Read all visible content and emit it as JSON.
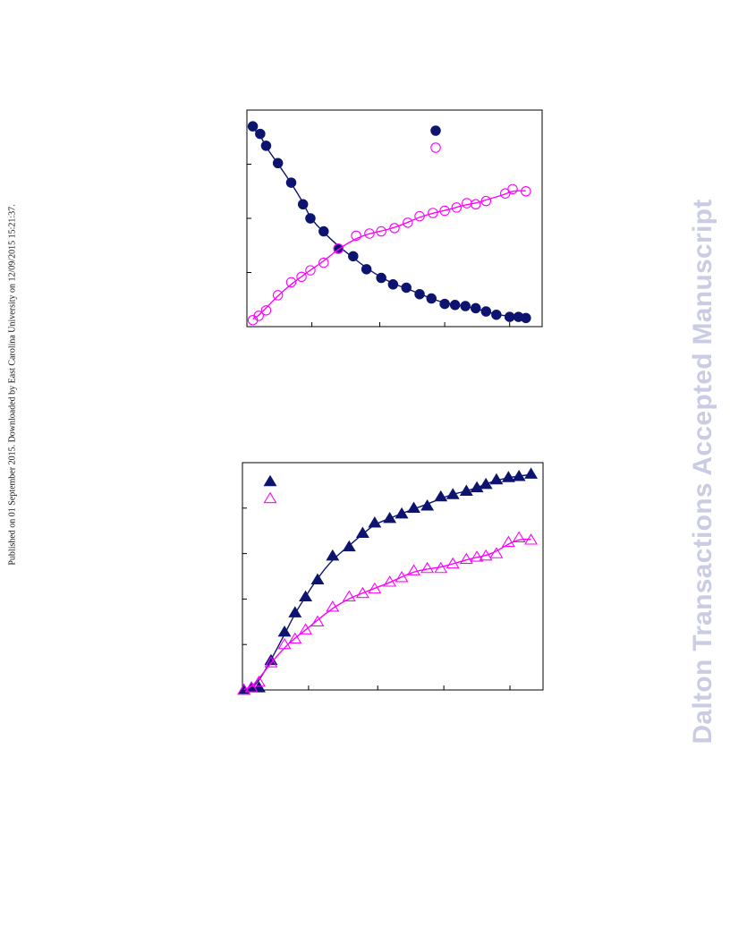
{
  "side_note": "Published on 01 September 2015. Downloaded by East Carolina University on 12/09/2015 15:21:37.",
  "watermark": "Dalton Transactions Accepted Manuscript",
  "colors": {
    "navy": "#0d1470",
    "magenta": "#ff00ff",
    "frame": "#000000"
  },
  "chart_data": [
    {
      "type": "scatter",
      "title": "",
      "xlabel": "",
      "ylabel": "",
      "xlim": [
        0,
        1
      ],
      "ylim": [
        0,
        1
      ],
      "grid": false,
      "legend_position": "top-right",
      "legend_labels_visible": false,
      "series": [
        {
          "marker": "filled-circle",
          "color": "#0d1470",
          "fit_curve": true,
          "x": [
            0.02,
            0.045,
            0.065,
            0.105,
            0.15,
            0.19,
            0.215,
            0.26,
            0.31,
            0.36,
            0.405,
            0.455,
            0.495,
            0.54,
            0.585,
            0.625,
            0.67,
            0.705,
            0.74,
            0.775,
            0.81,
            0.845,
            0.89,
            0.92,
            0.945
          ],
          "y": [
            0.925,
            0.89,
            0.835,
            0.755,
            0.665,
            0.565,
            0.5,
            0.44,
            0.36,
            0.325,
            0.265,
            0.225,
            0.195,
            0.18,
            0.15,
            0.13,
            0.105,
            0.1,
            0.095,
            0.085,
            0.07,
            0.055,
            0.045,
            0.045,
            0.04
          ]
        },
        {
          "marker": "open-circle",
          "color": "#ff00ff",
          "fit_curve": true,
          "x": [
            0.02,
            0.04,
            0.065,
            0.105,
            0.15,
            0.185,
            0.215,
            0.26,
            0.31,
            0.37,
            0.415,
            0.455,
            0.5,
            0.545,
            0.585,
            0.63,
            0.67,
            0.71,
            0.745,
            0.775,
            0.81,
            0.875,
            0.9,
            0.945
          ],
          "y": [
            0.03,
            0.05,
            0.075,
            0.145,
            0.205,
            0.23,
            0.26,
            0.295,
            0.36,
            0.42,
            0.43,
            0.44,
            0.455,
            0.48,
            0.51,
            0.525,
            0.535,
            0.55,
            0.57,
            0.565,
            0.58,
            0.615,
            0.635,
            0.625
          ]
        }
      ]
    },
    {
      "type": "scatter",
      "title": "",
      "xlabel": "",
      "ylabel": "",
      "xlim": [
        0,
        1
      ],
      "ylim": [
        0,
        1
      ],
      "grid": false,
      "legend_position": "top-left",
      "legend_labels_visible": false,
      "series": [
        {
          "marker": "filled-triangle",
          "color": "#0d1470",
          "fit_curve": true,
          "x": [
            0.005,
            0.03,
            0.055,
            0.095,
            0.14,
            0.175,
            0.21,
            0.25,
            0.3,
            0.355,
            0.4,
            0.44,
            0.49,
            0.53,
            0.57,
            0.615,
            0.66,
            0.7,
            0.745,
            0.78,
            0.81,
            0.845,
            0.885,
            0.92,
            0.96
          ],
          "y": [
            0.0,
            0.01,
            0.01,
            0.13,
            0.255,
            0.34,
            0.41,
            0.485,
            0.59,
            0.63,
            0.69,
            0.735,
            0.755,
            0.775,
            0.8,
            0.81,
            0.85,
            0.86,
            0.875,
            0.89,
            0.905,
            0.925,
            0.935,
            0.94,
            0.95
          ]
        },
        {
          "marker": "open-triangle",
          "color": "#ff00ff",
          "fit_curve": true,
          "x": [
            0.005,
            0.03,
            0.055,
            0.095,
            0.14,
            0.175,
            0.21,
            0.25,
            0.3,
            0.355,
            0.4,
            0.44,
            0.49,
            0.53,
            0.57,
            0.615,
            0.66,
            0.7,
            0.745,
            0.78,
            0.81,
            0.845,
            0.885,
            0.92,
            0.96
          ],
          "y": [
            0.0,
            0.01,
            0.035,
            0.12,
            0.2,
            0.225,
            0.265,
            0.3,
            0.365,
            0.41,
            0.425,
            0.445,
            0.475,
            0.495,
            0.525,
            0.535,
            0.535,
            0.555,
            0.575,
            0.585,
            0.59,
            0.6,
            0.65,
            0.67,
            0.66
          ]
        }
      ]
    }
  ]
}
